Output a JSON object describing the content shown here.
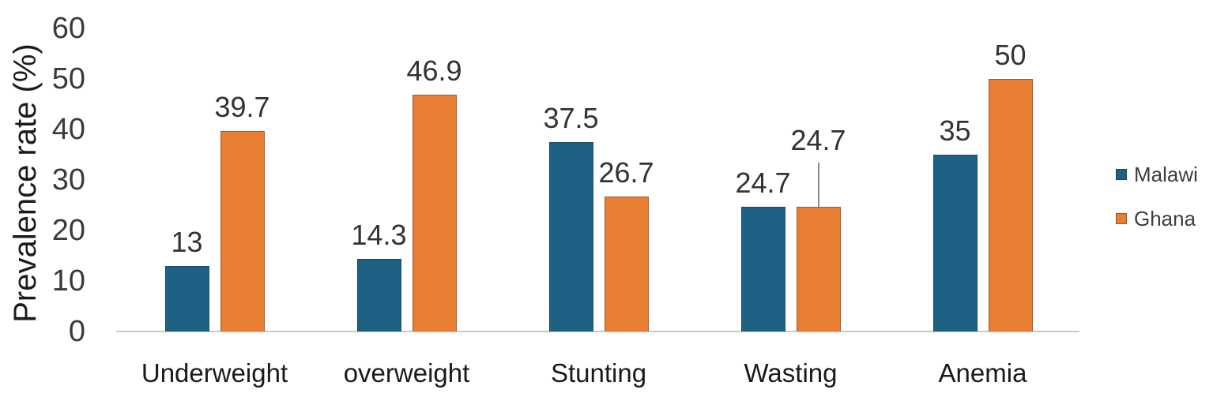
{
  "chart_data": {
    "type": "bar",
    "title": "",
    "xlabel": "",
    "ylabel": "Prevalence rate (%)",
    "ylim": [
      0,
      60
    ],
    "yticks": [
      0,
      10,
      20,
      30,
      40,
      50,
      60
    ],
    "grid": false,
    "legend_position": "right",
    "categories": [
      "Underweight",
      "overweight",
      "Stunting",
      "Wasting",
      "Anemia"
    ],
    "series": [
      {
        "name": "Malawi",
        "color": "#1F6185",
        "values": [
          13,
          14.3,
          37.5,
          24.7,
          35
        ],
        "labels": [
          "13",
          "14.3",
          "37.5",
          "24.7",
          "35"
        ]
      },
      {
        "name": "Ghana",
        "color": "#E87E31",
        "values": [
          39.7,
          46.9,
          26.7,
          24.7,
          50
        ],
        "labels": [
          "39.7",
          "46.9",
          "26.7",
          "24.7",
          "50"
        ]
      }
    ],
    "annotations": [
      {
        "type": "raised-label-with-leader-line",
        "series": "Ghana",
        "category": "Wasting",
        "label": "24.7"
      }
    ]
  },
  "colors": {
    "malawi": "#1F6185",
    "ghana": "#E87E31",
    "baseline": "#C9C9C9",
    "leader_line": "#8C8C8C",
    "tick_text": "#3a3a3a",
    "label_text": "#333333"
  }
}
